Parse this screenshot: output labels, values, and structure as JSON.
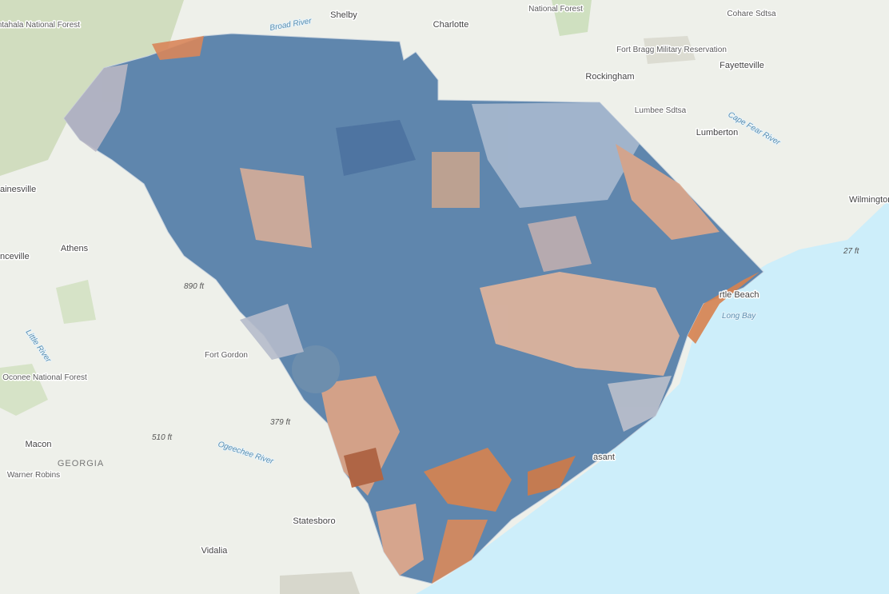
{
  "places": [
    "Nantahala National Forest",
    "Broad River",
    "Shelby",
    "Charlotte",
    "National Forest",
    "Cohare Sdtsa",
    "Fort Bragg Military Reservation",
    "Fayetteville",
    "Rockingham",
    "Lumbee Sdtsa",
    "Lumberton",
    "Cape Fear River",
    "Wilmington",
    "ainesville",
    "Athens",
    "nceville",
    "890 ft",
    "rtle Beach",
    "Long Bay",
    "27 ft",
    "Fort Gordon",
    "Little River",
    "Oconee National Forest",
    "379 ft",
    "510 ft",
    "Ogeechee River",
    "Macon",
    "GEORGIA",
    "Warner Robins",
    "Statesboro",
    "Vidalia",
    "asant"
  ]
}
